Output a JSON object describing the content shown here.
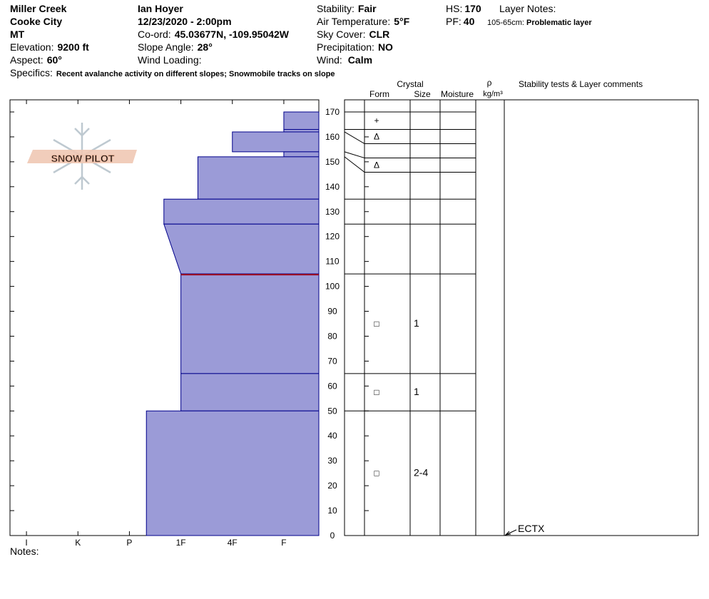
{
  "header": {
    "location": [
      "Miller Creek",
      "Cooke City",
      "MT"
    ],
    "elevation": {
      "label": "Elevation:",
      "value": "9200 ft"
    },
    "aspect": {
      "label": "Aspect:",
      "value": "60°"
    },
    "specifics": {
      "label": "Specifics:",
      "value": "Recent avalanche activity on different slopes; Snowmobile tracks on slope"
    },
    "observer": "Ian Hoyer",
    "datetime": "12/23/2020 - 2:00pm",
    "coord": {
      "label": "Co-ord:",
      "value": "45.03677N, -109.95042W"
    },
    "slope_angle": {
      "label": "Slope Angle:",
      "value": "28°"
    },
    "wind_loading": {
      "label": "Wind Loading:"
    },
    "stability": {
      "label": "Stability:",
      "value": "Fair"
    },
    "air_temperature": {
      "label": "Air Temperature:",
      "value": "5°F"
    },
    "sky_cover": {
      "label": "Sky Cover:",
      "value": "CLR"
    },
    "precipitation": {
      "label": "Precipitation:",
      "value": "NO"
    },
    "wind": {
      "label": "Wind:",
      "value": "Calm"
    },
    "hs": {
      "label": "HS:",
      "value": "170"
    },
    "pf": {
      "label": "PF:",
      "value": "40"
    },
    "layer_notes": {
      "title": "Layer Notes:",
      "range": "105-65cm:",
      "text": "Problematic layer"
    },
    "logo": "SNOW PILOT",
    "notes": "Notes:"
  },
  "chart_data": {
    "type": "snow-profile",
    "ylim": [
      0,
      170
    ],
    "yticks": [
      0,
      10,
      20,
      30,
      40,
      50,
      60,
      70,
      80,
      90,
      100,
      110,
      120,
      130,
      140,
      150,
      160,
      170
    ],
    "xlim": [
      0.68,
      6.68
    ],
    "xticks": [
      {
        "value": 1,
        "label": "I"
      },
      {
        "value": 2,
        "label": "K"
      },
      {
        "value": 3,
        "label": "P"
      },
      {
        "value": 4,
        "label": "1F"
      },
      {
        "value": 5,
        "label": "4F"
      },
      {
        "value": 6,
        "label": "F"
      }
    ],
    "color": "#9b9bd7",
    "edge_color": "#00008b",
    "columns": {
      "crystal": "Crystal",
      "form": "Form",
      "size": "Size",
      "moisture": "Moisture",
      "density": "ρ",
      "density_unit": "kg/m³",
      "comments": "Stability tests & Layer comments"
    },
    "layers": [
      {
        "top": 170,
        "bottom": 163,
        "hardness": 6,
        "form": "+"
      },
      {
        "top": 163,
        "bottom": 162,
        "hardness": 6,
        "form": "Δ"
      },
      {
        "top": 162,
        "bottom": 154,
        "hardness": 5
      },
      {
        "top": 154,
        "bottom": 152,
        "hardness": 6,
        "form": "Δ"
      },
      {
        "top": 152,
        "bottom": 135,
        "hardness": 4.33
      },
      {
        "top": 135,
        "bottom": 125,
        "hardness": 3.67
      },
      {
        "top": 125,
        "bottom": 105,
        "hardness": [
          3.67,
          4
        ]
      },
      {
        "top": 105,
        "bottom": 65,
        "hardness": 4,
        "form": "□",
        "size": "1"
      },
      {
        "top": 65,
        "bottom": 50,
        "hardness": 4,
        "form": "□",
        "size": "1"
      },
      {
        "top": 50,
        "bottom": 0,
        "hardness": 3.33,
        "form": "□",
        "size": "2-4"
      }
    ],
    "problem_layer": {
      "depth": 105,
      "color": "#a00020"
    },
    "tests": [
      {
        "depth": 0,
        "label": "ECTX"
      }
    ]
  }
}
